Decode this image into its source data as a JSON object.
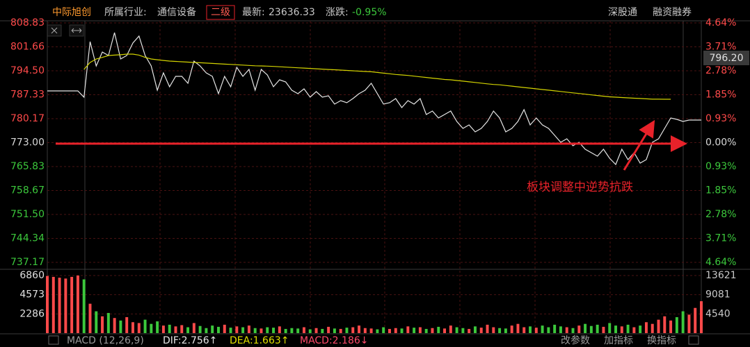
{
  "header": {
    "name": "中际旭创",
    "industry_label": "所属行业:",
    "industry": "通信设备",
    "level": "二级",
    "latest_label": "最新:",
    "latest": "23636.33",
    "change_label": "涨跌:",
    "change": "-0.95%",
    "links": [
      "深股通",
      "融资融券"
    ]
  },
  "cursor_price": "796.20",
  "footer": {
    "indicator": "MACD (12,26,9)",
    "dif": "DIF:2.756↑",
    "dea": "DEA:1.663↑",
    "macd": "MACD:2.186↓",
    "buttons": [
      "改参数",
      "加指标",
      "换指标"
    ]
  },
  "chart_data": [
    {
      "type": "line",
      "annotation": "板块调整中逆势抗跌",
      "up_color": "#ff4a4a",
      "down_color": "#3cc83c",
      "flat_color": "#d8d8d8",
      "grid": true,
      "series": [
        {
          "color": "#e6e6e6",
          "values": [
            788.48,
            788.48,
            788.48,
            788.48,
            788.48,
            788.48,
            786.61,
            803.22,
            795.95,
            800.11,
            799.07,
            805.92,
            798.03,
            799.07,
            802.81,
            804.88,
            799.07,
            795.95,
            788.68,
            793.88,
            789.72,
            792.84,
            792.84,
            790.76,
            797.41,
            795.95,
            793.88,
            792.84,
            787.64,
            792.84,
            789.72,
            795.54,
            792.84,
            794.91,
            788.68,
            794.91,
            793.25,
            789.72,
            791.8,
            791.18,
            788.68,
            787.64,
            789.1,
            786.61,
            788.27,
            786.61,
            787.02,
            784.53,
            785.57,
            784.94,
            786.19,
            787.64,
            788.68,
            790.76,
            787.64,
            784.53,
            784.94,
            786.19,
            783.49,
            785.57,
            784.53,
            786.19,
            781.41,
            782.45,
            780.38,
            781.41,
            782.45,
            779.34,
            777.26,
            778.3,
            776.22,
            777.26,
            779.34,
            782.45,
            780.38,
            776.22,
            777.26,
            779.34,
            782.87,
            778.3,
            780.38,
            778.3,
            777.26,
            775.18,
            773.11,
            774.14,
            772.07,
            773.11,
            771.03,
            769.99,
            768.95,
            771.03,
            768.33,
            766.46,
            771.03,
            767.91,
            769.99,
            766.87,
            767.91,
            773.11,
            774.14,
            777.26,
            780.38,
            779.96,
            779.34,
            779.75,
            779.75,
            779.75
          ]
        },
        {
          "color": "#d4d400",
          "values": [
            null,
            null,
            null,
            null,
            null,
            null,
            794.91,
            797.0,
            798.03,
            798.5,
            799.07,
            799.2,
            799.3,
            799.48,
            799.48,
            799.2,
            798.5,
            798.03,
            797.8,
            797.6,
            797.4,
            797.3,
            797.2,
            797.1,
            797.0,
            796.9,
            796.8,
            796.7,
            796.6,
            796.5,
            796.4,
            796.3,
            796.2,
            796.1,
            796.0,
            795.95,
            795.9,
            795.8,
            795.7,
            795.6,
            795.5,
            795.4,
            795.3,
            795.2,
            795.1,
            795.0,
            794.9,
            794.8,
            794.7,
            794.6,
            794.5,
            794.4,
            794.3,
            794.2,
            794.0,
            793.8,
            793.6,
            793.4,
            793.25,
            793.1,
            792.9,
            792.7,
            792.5,
            792.3,
            792.1,
            791.9,
            791.8,
            791.6,
            791.4,
            791.2,
            791.0,
            790.8,
            790.6,
            790.4,
            790.3,
            790.1,
            789.9,
            789.7,
            789.5,
            789.3,
            789.1,
            788.9,
            788.7,
            788.5,
            788.3,
            788.1,
            787.9,
            787.7,
            787.5,
            787.3,
            787.1,
            786.9,
            786.7,
            786.6,
            786.5,
            786.4,
            786.3,
            786.2,
            786.1,
            786.0,
            786.0,
            785.98,
            785.98,
            null,
            null,
            null,
            null,
            null
          ]
        }
      ],
      "ylim": [
        737.17,
        808.83
      ],
      "yticks": [
        808.83,
        801.66,
        {
          "value": 794.5,
          "label": "794.50"
        },
        787.33,
        780.17,
        {
          "value": 773,
          "label": "773.00"
        },
        765.83,
        758.67,
        {
          "value": 751.5,
          "label": "751.50"
        },
        744.34,
        737.17
      ],
      "y2lim": [
        -4.64,
        4.64
      ],
      "y2ticks": [
        {
          "value": 4.64,
          "label": "4.64%"
        },
        {
          "value": 3.71,
          "label": "3.71%"
        },
        {
          "value": 2.78,
          "label": "2.78%"
        },
        {
          "value": 1.85,
          "label": "1.85%"
        },
        {
          "value": 0.93,
          "label": "0.93%"
        },
        {
          "value": 0,
          "label": "0.00%"
        },
        {
          "value": -0.93,
          "label": "0.93%"
        },
        {
          "value": -1.85,
          "label": "1.85%"
        },
        {
          "value": -2.78,
          "label": "2.78%"
        },
        {
          "value": -3.71,
          "label": "3.71%"
        },
        {
          "value": -4.64,
          "label": "4.64%"
        }
      ]
    },
    {
      "type": "bar",
      "up_color": "#ff4a4a",
      "down_color": "#3cc83c",
      "values": [
        6800,
        6700,
        6600,
        6500,
        6700,
        6860,
        6400,
        3500,
        2600,
        2000,
        2400,
        1800,
        1500,
        1900,
        1300,
        1200,
        1600,
        1100,
        1400,
        900,
        1000,
        800,
        950,
        700,
        1200,
        850,
        600,
        900,
        750,
        1000,
        650,
        800,
        700,
        900,
        600,
        550,
        700,
        650,
        800,
        500,
        600,
        550,
        700,
        450,
        600,
        500,
        750,
        550,
        500,
        650,
        700,
        900,
        600,
        550,
        450,
        700,
        500,
        600,
        550,
        800,
        650,
        700,
        500,
        600,
        750,
        550,
        900,
        700,
        600,
        500,
        800,
        650,
        1000,
        700,
        600,
        550,
        900,
        1100,
        700,
        800,
        650,
        900,
        700,
        1000,
        800,
        700,
        600,
        900,
        1100,
        850,
        1000,
        750,
        1200,
        900,
        800,
        1000,
        700,
        900,
        1300,
        1100,
        1600,
        2000,
        1500,
        1900,
        2600,
        2200,
        3000,
        3800
      ],
      "ylim": [
        0,
        6860
      ],
      "yticks": [
        6860,
        4573,
        2286
      ],
      "y2lim": [
        0,
        13621
      ],
      "y2ticks": [
        13621,
        9081,
        4540
      ]
    }
  ]
}
